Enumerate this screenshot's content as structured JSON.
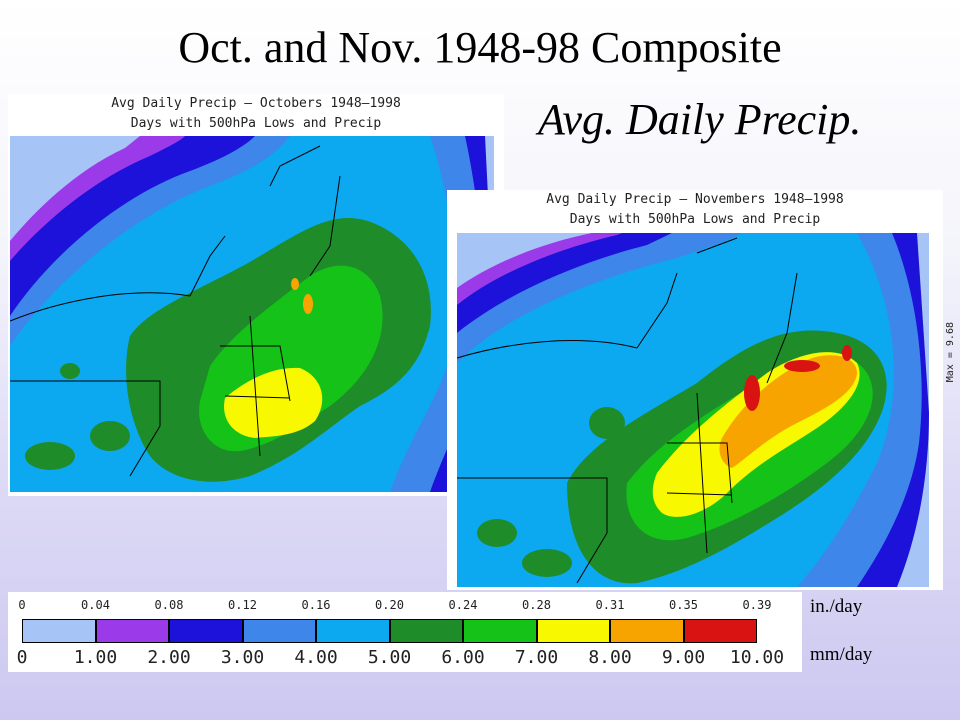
{
  "slide": {
    "title": "Oct. and Nov. 1948-98 Composite",
    "subtitle": "Avg. Daily Precip."
  },
  "panels": {
    "october": {
      "title_line1": "Avg Daily Precip – Octobers 1948–1998",
      "title_line2": "Days with 500hPa Lows and Precip"
    },
    "november": {
      "title_line1": "Avg Daily Precip – Novembers 1948–1998",
      "title_line2": "Days with 500hPa Lows and Precip",
      "max_label": "Max = 9.68"
    }
  },
  "legend": {
    "inches_labels": [
      "0",
      "0.04",
      "0.08",
      "0.12",
      "0.16",
      "0.20",
      "0.24",
      "0.28",
      "0.31",
      "0.35",
      "0.39"
    ],
    "mm_labels": [
      "0",
      "1.00",
      "2.00",
      "3.00",
      "4.00",
      "5.00",
      "6.00",
      "7.00",
      "8.00",
      "9.00",
      "10.00"
    ],
    "colors": [
      "#a7c4f6",
      "#9b3ae8",
      "#1c12d9",
      "#3f86ea",
      "#0ca8f0",
      "#1f8c2a",
      "#14c218",
      "#f8f800",
      "#f8a400",
      "#d91212"
    ],
    "unit_inches": "in./day",
    "unit_mm": "mm/day"
  }
}
